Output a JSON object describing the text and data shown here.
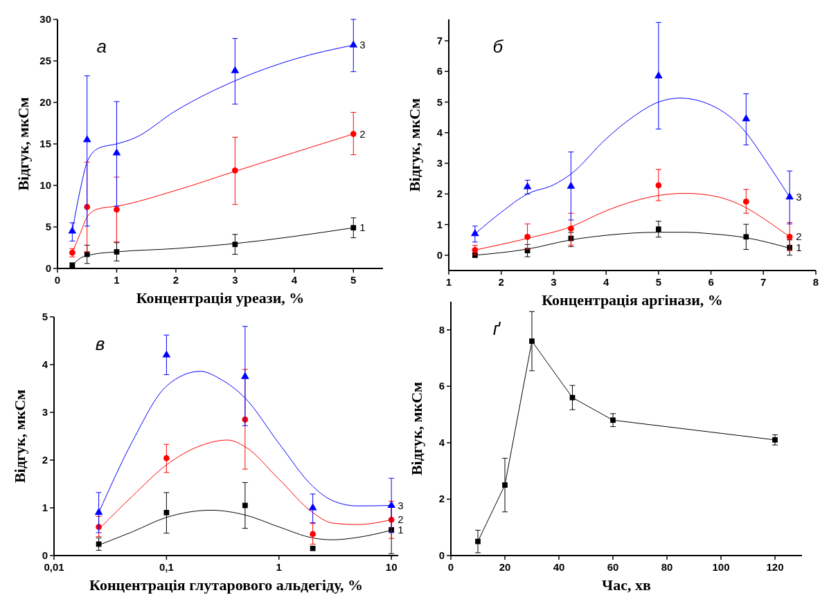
{
  "chart_data": [
    {
      "type": "scatter",
      "title": "а",
      "xlabel": "Концентрація уреази, %",
      "ylabel": "Відгук, мкСм",
      "xlim": [
        0,
        5.5
      ],
      "xticks": [
        0,
        1,
        2,
        3,
        4,
        5
      ],
      "ylim": [
        0,
        30
      ],
      "yticks": [
        0,
        5,
        10,
        15,
        20,
        25,
        30
      ],
      "grid": false,
      "series": [
        {
          "type": "line",
          "marker": "none",
          "color": "#000000",
          "x": [
            0.25,
            0.4,
            0.6,
            1,
            2,
            3,
            5
          ],
          "values": [
            0.4,
            1.3,
            1.7,
            2.0,
            2.4,
            3.0,
            4.9
          ]
        },
        {
          "type": "line",
          "marker": "none",
          "color": "#ff0000",
          "x": [
            0.25,
            0.4,
            0.5,
            0.7,
            1,
            2,
            3,
            5
          ],
          "values": [
            1.9,
            4.5,
            6.2,
            7.2,
            7.5,
            9.4,
            11.7,
            16.2
          ]
        },
        {
          "type": "line",
          "marker": "none",
          "color": "#0000ff",
          "x": [
            0.25,
            0.4,
            0.5,
            0.7,
            1,
            1.3,
            2,
            3,
            4,
            5
          ],
          "values": [
            4.5,
            10,
            12.8,
            14.5,
            15.0,
            15.7,
            19.0,
            22.6,
            25.2,
            26.9
          ]
        },
        {
          "name": "1",
          "marker": "square",
          "color": "#000000",
          "x": [
            0.25,
            0.5,
            1,
            3,
            5
          ],
          "values": [
            0.4,
            1.7,
            2.0,
            2.9,
            4.9
          ],
          "errors": [
            0.2,
            1.1,
            1.1,
            1.2,
            1.2
          ]
        },
        {
          "name": "2",
          "marker": "circle",
          "color": "#ff0000",
          "x": [
            0.25,
            0.5,
            1,
            3,
            5
          ],
          "values": [
            1.9,
            7.4,
            7.1,
            11.8,
            16.2
          ],
          "errors": [
            0.5,
            [
              2.0,
              12.8
            ],
            [
              3.2,
              11.0
            ],
            [
              7.7,
              15.8
            ],
            [
              13.7,
              18.8
            ]
          ]
        },
        {
          "name": "3",
          "marker": "triangle",
          "color": "#0000ff",
          "x": [
            0.25,
            0.5,
            1,
            3,
            5
          ],
          "values": [
            4.5,
            15.5,
            13.9,
            23.8,
            26.9
          ],
          "errors": [
            [
              3.3,
              5.5
            ],
            [
              5.1,
              23.2
            ],
            [
              7.5,
              20.1
            ],
            [
              19.8,
              27.7
            ],
            [
              23.7,
              30.0
            ]
          ]
        }
      ]
    },
    {
      "type": "scatter",
      "title": "б",
      "xlabel": "Концентрація аргінази, %",
      "ylabel": "Відгук, мкСм",
      "xlim": [
        1,
        8
      ],
      "xticks": [
        1,
        2,
        3,
        4,
        5,
        6,
        7,
        8
      ],
      "ylim": [
        -0.5,
        7.7
      ],
      "yticks": [
        0,
        1,
        2,
        3,
        4,
        5,
        6,
        7
      ],
      "grid": false,
      "series": [
        {
          "type": "line",
          "marker": "none",
          "color": "#000000",
          "x": [
            1.5,
            2.5,
            3.33,
            4,
            5,
            5.5,
            6,
            6.67,
            7.5
          ],
          "values": [
            0.0,
            0.2,
            0.5,
            0.65,
            0.75,
            0.75,
            0.7,
            0.57,
            0.23
          ]
        },
        {
          "type": "line",
          "marker": "none",
          "color": "#ff0000",
          "x": [
            1.5,
            2.5,
            3.33,
            4,
            5,
            5.5,
            6,
            6.67,
            7,
            7.5
          ],
          "values": [
            0.17,
            0.55,
            0.93,
            1.45,
            1.95,
            2.02,
            1.95,
            1.55,
            1.2,
            0.6
          ]
        },
        {
          "type": "line",
          "marker": "none",
          "color": "#0000ff",
          "x": [
            1.5,
            2,
            2.5,
            3,
            3.33,
            4,
            4.5,
            5,
            5.4,
            6,
            6.67,
            7,
            7.5
          ],
          "values": [
            0.7,
            1.4,
            2.0,
            2.3,
            2.65,
            3.8,
            4.5,
            5.0,
            5.13,
            4.9,
            4.0,
            3.2,
            1.9
          ]
        },
        {
          "name": "1",
          "marker": "square",
          "color": "#000000",
          "x": [
            1.5,
            2.5,
            3.33,
            5,
            6.67,
            7.5
          ],
          "values": [
            0.0,
            0.15,
            0.55,
            0.85,
            0.6,
            0.25
          ],
          "errors": [
            0.05,
            0.2,
            [
              0.28,
              0.74
            ],
            0.26,
            0.41,
            0.25
          ]
        },
        {
          "name": "2",
          "marker": "circle",
          "color": "#ff0000",
          "x": [
            1.5,
            2.5,
            3.33,
            5,
            6.67,
            7.5
          ],
          "values": [
            0.17,
            0.6,
            0.87,
            2.28,
            1.75,
            0.6
          ],
          "errors": [
            0.15,
            [
              0.2,
              1.02
            ],
            [
              0.33,
              1.37
            ],
            [
              1.78,
              2.8
            ],
            [
              1.37,
              2.15
            ],
            [
              0.15,
              1.07
            ]
          ]
        },
        {
          "name": "3",
          "marker": "triangle",
          "color": "#0000ff",
          "x": [
            1.5,
            2.5,
            3.33,
            5,
            6.67,
            7.5
          ],
          "values": [
            0.7,
            2.23,
            2.25,
            5.85,
            4.45,
            1.9
          ],
          "errors": [
            [
              0.43,
              0.95
            ],
            [
              2.0,
              2.45
            ],
            [
              1.15,
              3.37
            ],
            [
              4.12,
              7.6
            ],
            [
              3.6,
              5.27
            ],
            [
              1.02,
              2.75
            ]
          ]
        }
      ]
    },
    {
      "type": "scatter",
      "title": "в",
      "xlabel": "Концентрація глутарового альдегіду, %",
      "ylabel": "Відгук, мкСм",
      "log": "x",
      "xlim": [
        0.01,
        11.5
      ],
      "xticks": [
        {
          "value": 0.01,
          "label": "0,01"
        },
        {
          "value": 0.1,
          "label": "0,1"
        },
        1,
        10
      ],
      "ylim": [
        0,
        5
      ],
      "yticks": [
        0,
        1,
        2,
        3,
        4,
        5
      ],
      "grid": false,
      "series": [
        {
          "type": "line",
          "marker": "none",
          "color": "#000000",
          "x": [
            0.025,
            0.05,
            0.1,
            0.25,
            0.5,
            1,
            2,
            3,
            5,
            10
          ],
          "values": [
            0.22,
            0.5,
            0.8,
            0.95,
            0.85,
            0.6,
            0.37,
            0.33,
            0.38,
            0.53
          ]
        },
        {
          "type": "line",
          "marker": "none",
          "color": "#ff0000",
          "x": [
            0.025,
            0.05,
            0.1,
            0.2,
            0.35,
            0.5,
            1,
            2,
            3,
            5,
            10
          ],
          "values": [
            0.55,
            1.25,
            1.9,
            2.3,
            2.42,
            2.28,
            1.6,
            0.9,
            0.68,
            0.65,
            0.75
          ]
        },
        {
          "type": "line",
          "marker": "none",
          "color": "#0000ff",
          "x": [
            0.025,
            0.05,
            0.1,
            0.2,
            0.3,
            0.5,
            1,
            2,
            3,
            5,
            10
          ],
          "values": [
            0.9,
            2.4,
            3.55,
            3.86,
            3.7,
            3.3,
            2.35,
            1.45,
            1.15,
            1.04,
            1.05
          ]
        },
        {
          "name": "1",
          "marker": "square",
          "color": "#000000",
          "x": [
            0.025,
            0.1,
            0.5,
            2,
            10
          ],
          "values": [
            0.24,
            0.9,
            1.05,
            0.15,
            0.54
          ],
          "errors": [
            [
              0.11,
              0.37
            ],
            [
              0.47,
              1.32
            ],
            [
              0.57,
              1.53
            ],
            null,
            0.5
          ]
        },
        {
          "name": "2",
          "marker": "circle",
          "color": "#ff0000",
          "x": [
            0.025,
            0.1,
            0.5,
            2,
            10
          ],
          "values": [
            0.6,
            2.04,
            2.85,
            0.45,
            0.75
          ],
          "errors": [
            [
              0.4,
              0.82
            ],
            [
              1.74,
              2.33
            ],
            [
              1.81,
              3.9
            ],
            [
              0.24,
              0.67
            ],
            [
              0.36,
              1.14
            ]
          ]
        },
        {
          "name": "3",
          "marker": "triangle",
          "color": "#0000ff",
          "x": [
            0.025,
            0.1,
            0.5,
            2,
            10
          ],
          "values": [
            0.9,
            4.2,
            3.75,
            1.0,
            1.05
          ],
          "errors": [
            [
              0.48,
              1.32
            ],
            [
              3.79,
              4.62
            ],
            [
              2.72,
              4.8
            ],
            [
              0.69,
              1.29
            ],
            0.57
          ]
        }
      ]
    },
    {
      "type": "line",
      "title": "ґ",
      "xlabel": "Час, хв",
      "ylabel": "Відгук, мкСм",
      "xlim": [
        0,
        130
      ],
      "xticks": [
        0,
        20,
        40,
        60,
        80,
        100,
        120
      ],
      "ylim": [
        0,
        9
      ],
      "yticks": [
        0,
        2,
        4,
        6,
        8
      ],
      "grid": false,
      "marker": "square",
      "series": [
        {
          "color": "#000000",
          "x": [
            10,
            20,
            30,
            45,
            60,
            120
          ],
          "values": [
            0.5,
            2.5,
            7.6,
            5.6,
            4.8,
            4.1
          ],
          "errors": [
            0.4,
            0.95,
            1.05,
            0.43,
            0.23,
            0.18
          ]
        }
      ]
    }
  ]
}
